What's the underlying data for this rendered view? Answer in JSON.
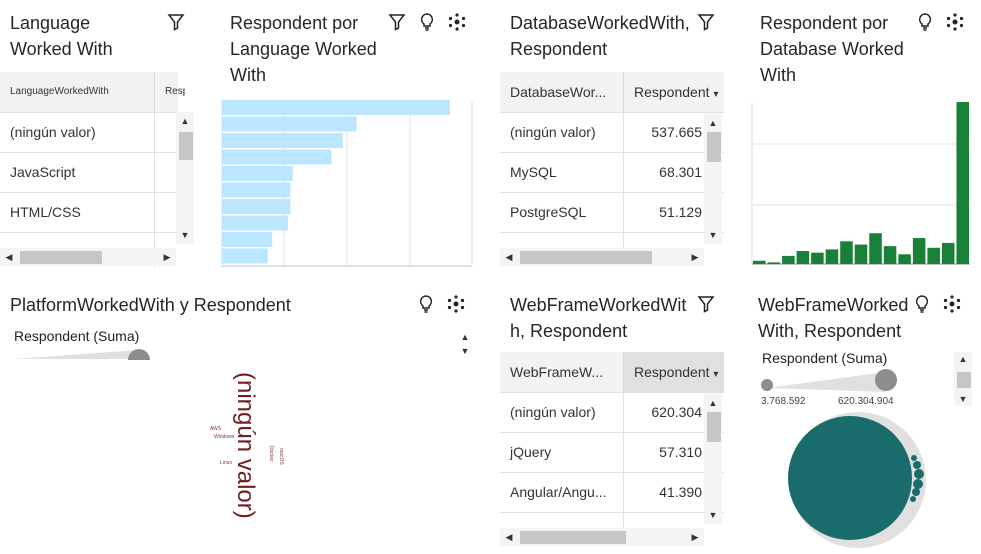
{
  "tiles": {
    "lang_table": {
      "title": "Language Worked With",
      "col1": "LanguageWorkedWith",
      "col2": "Respondent",
      "rows": [
        "(ningún valor)",
        "JavaScript",
        "HTML/CSS"
      ]
    },
    "lang_bar": {
      "title": "Respondent por Language Worked With",
      "bar_color": "#bae6ff"
    },
    "db_table": {
      "title": "DatabaseWorkedWith, Respondent",
      "col1": "DatabaseWor...",
      "col2": "Respondent",
      "rows": [
        {
          "name": "(ningún valor)",
          "value": "537.665"
        },
        {
          "name": "MySQL",
          "value": "68.301"
        },
        {
          "name": "PostgreSQL",
          "value": "51.129"
        }
      ]
    },
    "db_bar": {
      "title": "Respondent por Database Worked With",
      "bar_color": "#198038"
    },
    "platform_cloud": {
      "title": "PlatformWorkedWith y Respondent",
      "legend_label": "Respondent (Suma)",
      "big_word": "(ningún valor)",
      "words": [
        "Linux",
        "Windows",
        "AWS",
        "Docker",
        "macOS"
      ],
      "word_color": "#6f1f1f"
    },
    "web_table": {
      "title": "WebFrameWorkedWith, Respondent",
      "col1": "WebFrameW...",
      "col2": "Respondent",
      "rows": [
        {
          "name": "(ningún valor)",
          "value": "620.304"
        },
        {
          "name": "jQuery",
          "value": "57.310"
        },
        {
          "name": "Angular/Angu...",
          "value": "41.390"
        }
      ]
    },
    "web_bubble": {
      "title": "WebFrameWorked With, Respondent",
      "legend_label": "Respondent (Suma)",
      "range_min": "3.768.592",
      "range_max": "620.304.904",
      "bubble_color": "#1a6b6b"
    }
  },
  "chart_data": [
    {
      "type": "bar",
      "orientation": "horizontal",
      "title": "Respondent por Language Worked With",
      "values": [
        100,
        59,
        53,
        48,
        31,
        30,
        30,
        29,
        22,
        20
      ],
      "grid": true
    },
    {
      "type": "bar",
      "title": "Respondent por Database Worked With",
      "values": [
        2,
        1,
        5,
        8,
        7,
        9,
        14,
        12,
        19,
        11,
        6,
        16,
        10,
        13,
        100
      ],
      "grid": true
    }
  ]
}
